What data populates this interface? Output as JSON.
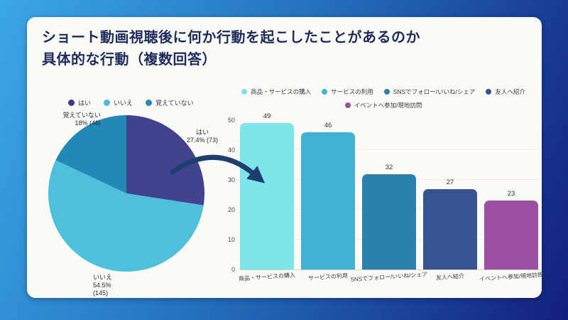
{
  "title": {
    "line1": "ショート動画視聴後に何か行動を起こしたことがあるのか",
    "line2": "具体的な行動（複数回答）"
  },
  "colors": {
    "background_gradient": [
      "#3ba7e7",
      "#2470bd",
      "#131f7c"
    ],
    "card": "#fbfaf6",
    "title_text": "#1c2b5c",
    "arrow": "#1d3e6f",
    "axis_text": "#4a4a55",
    "value_label": "#2e2e38",
    "gridline": "#f3ece8",
    "axis_line": "#d8d2ca"
  },
  "chart_data": [
    {
      "type": "pie",
      "labels": [
        "はい",
        "いいえ",
        "覚えていない"
      ],
      "values_pct": [
        27.4,
        54.5,
        18.0
      ],
      "counts": [
        73,
        145,
        48
      ],
      "colors": [
        "#42428f",
        "#4dc0dc",
        "#2288b6"
      ],
      "legend_colors": [
        "#3c3c8b",
        "#4bbad8",
        "#2489b6"
      ],
      "legend_position": "top",
      "start_angle": "12-oclock",
      "direction": "clockwise",
      "annotations": {
        "yes": {
          "lines": [
            "はい",
            "27.4% (73)"
          ]
        },
        "no": {
          "lines": [
            "いいえ",
            "54.5%",
            "(145)"
          ]
        },
        "dont_remember": {
          "lines": [
            "覚えていない",
            "18% (48)"
          ]
        }
      }
    },
    {
      "type": "bar",
      "categories": [
        "商品・サービスの購入",
        "サービスの利用",
        "SNSでフォロー/いいね/シェア",
        "友人へ紹介",
        "イベントへ参加/現地訪問"
      ],
      "values": [
        49,
        46,
        32,
        27,
        23
      ],
      "colors": [
        "#7de4ea",
        "#41b3d2",
        "#2a81ac",
        "#365490",
        "#9b51a1"
      ],
      "ylim": [
        0,
        50
      ],
      "yticks": [
        0,
        10,
        20,
        30,
        40,
        50
      ],
      "grid": "horizontal-faint",
      "value_labels": true,
      "legend_position": "top",
      "legend_rows": [
        [
          "商品・サービスの購入",
          "サービスの利用",
          "SNSでフォロー/いいね/シェア",
          "友人へ紹介"
        ],
        [
          "イベントへ参加/現地訪問"
        ]
      ]
    }
  ]
}
